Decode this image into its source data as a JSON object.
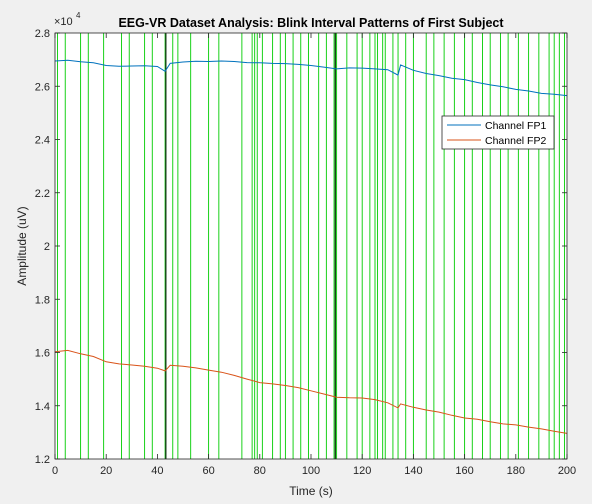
{
  "chart_data": {
    "type": "line",
    "title": "EEG-VR Dataset Analysis: Blink Interval Patterns of First Subject",
    "xlabel": "Time (s)",
    "ylabel": "Amplitude (uV)",
    "xlim": [
      0,
      200
    ],
    "ylim": [
      12000,
      28000
    ],
    "exponent_label": "×10",
    "exponent_power": "4",
    "xticks": [
      0,
      20,
      40,
      60,
      80,
      100,
      120,
      140,
      160,
      180,
      200
    ],
    "yticks": [
      1.2,
      1.4,
      1.6,
      1.8,
      2,
      2.2,
      2.4,
      2.6,
      2.8
    ],
    "grid": false,
    "legend_position": "top-right",
    "series": [
      {
        "name": "Channel FP1",
        "color": "#0072BD",
        "x": [
          0,
          5,
          10,
          15,
          20,
          25,
          30,
          35,
          40,
          43,
          45,
          50,
          55,
          60,
          65,
          70,
          75,
          80,
          85,
          90,
          95,
          100,
          105,
          110,
          115,
          120,
          125,
          130,
          134,
          135,
          140,
          145,
          150,
          155,
          160,
          165,
          170,
          175,
          180,
          185,
          190,
          195,
          200
        ],
        "y": [
          26950,
          26980,
          26920,
          26880,
          26780,
          26750,
          26760,
          26770,
          26740,
          26560,
          26860,
          26910,
          26940,
          26930,
          26950,
          26930,
          26890,
          26880,
          26860,
          26850,
          26820,
          26780,
          26720,
          26650,
          26690,
          26680,
          26650,
          26620,
          26420,
          26800,
          26600,
          26480,
          26400,
          26300,
          26250,
          26140,
          26050,
          25980,
          25880,
          25820,
          25730,
          25700,
          25650
        ]
      },
      {
        "name": "Channel FP2",
        "color": "#D95319",
        "x": [
          0,
          5,
          10,
          15,
          20,
          25,
          30,
          35,
          40,
          43,
          45,
          50,
          55,
          60,
          65,
          70,
          75,
          80,
          85,
          90,
          95,
          100,
          105,
          110,
          115,
          120,
          125,
          130,
          134,
          135,
          140,
          145,
          150,
          155,
          160,
          165,
          170,
          175,
          180,
          185,
          190,
          195,
          200
        ],
        "y": [
          16030,
          16080,
          15950,
          15850,
          15650,
          15570,
          15530,
          15480,
          15410,
          15310,
          15520,
          15480,
          15420,
          15340,
          15260,
          15140,
          15000,
          14870,
          14820,
          14760,
          14680,
          14560,
          14440,
          14320,
          14300,
          14290,
          14230,
          14110,
          13920,
          14070,
          13940,
          13840,
          13760,
          13640,
          13540,
          13490,
          13400,
          13320,
          13280,
          13200,
          13130,
          13040,
          12960
        ]
      }
    ],
    "blink_markers": {
      "color": "#00CC00",
      "x": [
        1,
        4,
        10,
        13,
        19,
        26,
        29,
        35,
        38,
        43,
        46,
        48,
        53,
        60,
        64,
        73,
        77,
        78,
        79,
        81,
        85,
        88,
        90,
        93,
        96,
        99,
        103,
        106,
        109,
        110,
        114,
        118,
        120,
        123,
        125,
        126,
        128,
        129,
        132,
        134,
        137,
        140,
        145,
        148,
        152,
        156,
        160,
        163,
        167,
        170,
        174,
        177,
        181,
        185,
        189,
        193,
        195,
        197,
        199
      ]
    },
    "dark_markers": {
      "color": "#1a3a1a",
      "x": [
        43.3,
        109.5
      ]
    }
  }
}
